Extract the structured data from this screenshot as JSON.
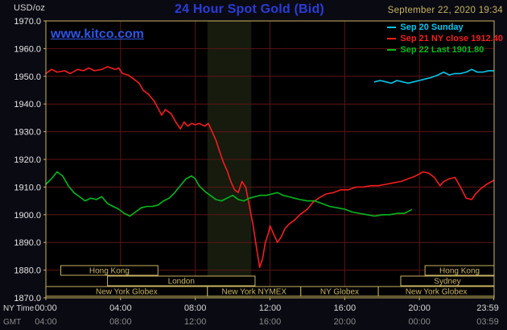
{
  "header": {
    "units_label": "USD/oz",
    "title": "24 Hour Spot Gold (Bid)",
    "datetime": "September 22, 2020 19:34"
  },
  "watermark_text": "www.kitco.com",
  "colors": {
    "page_bg": "#0a0a13",
    "plot_bg": "#000000",
    "frame": "#c9b462",
    "grid": "#5f1515",
    "band": "#161b0e",
    "title": "#2b3cd9",
    "watermark": "#2c55e8",
    "datetime": "#c8b55e",
    "units": "#d6d6d6",
    "y_tick_text": "#e6e6e6",
    "ny_time_text": "#d9d9d9",
    "gmt_text": "#8a8a8a"
  },
  "chart_data": {
    "type": "line",
    "title": "24 Hour Spot Gold (Bid)",
    "xlabel": "NY Time",
    "ylabel": "USD/oz",
    "xlim": [
      0,
      24
    ],
    "ylim": [
      1870,
      1970
    ],
    "grid": true,
    "legend_position": "top-right",
    "y_ticks": [
      1970,
      1960,
      1950,
      1940,
      1930,
      1920,
      1910,
      1900,
      1890,
      1880,
      1870
    ],
    "tick_hours": [
      0,
      4,
      8,
      12,
      16,
      20,
      23.983
    ],
    "ny_ticks": [
      "00:00",
      "04:00",
      "08:00",
      "12:00",
      "16:00",
      "20:00",
      "23:59"
    ],
    "gmt_ticks": [
      "04:00",
      "08:00",
      "12:00",
      "16:00",
      "20:00",
      "00:00",
      "03:59"
    ],
    "ny_axis_label": "NY Time",
    "gmt_axis_label": "GMT",
    "shaded_band_hours": [
      8.65,
      11.0
    ],
    "sessions": [
      {
        "row": 0,
        "label": "Hong Kong",
        "start": 0.8,
        "end": 6.0
      },
      {
        "row": 0,
        "label": "Hong Kong",
        "start": 20.3,
        "end": 24
      },
      {
        "row": 1,
        "label": "London",
        "start": 3.3,
        "end": 11.2
      },
      {
        "row": 1,
        "label": "Sydney",
        "start": 19.0,
        "end": 24
      },
      {
        "row": 2,
        "label": "New York Globex",
        "start": 0,
        "end": 8.65
      },
      {
        "row": 2,
        "label": "New York NYMEX",
        "start": 8.65,
        "end": 13.65
      },
      {
        "row": 2,
        "label": "NY Globex",
        "start": 13.65,
        "end": 17.8
      },
      {
        "row": 2,
        "label": "New York Globex",
        "start": 17.8,
        "end": 24
      }
    ],
    "series": [
      {
        "name": "Sep 20 Sunday",
        "color": "#00c8f0",
        "points": [
          [
            17.6,
            1948
          ],
          [
            17.9,
            1948.5
          ],
          [
            18.2,
            1948
          ],
          [
            18.5,
            1947.5
          ],
          [
            18.8,
            1948.5
          ],
          [
            19.1,
            1948
          ],
          [
            19.4,
            1947.5
          ],
          [
            19.7,
            1948
          ],
          [
            20,
            1948.5
          ],
          [
            20.3,
            1949
          ],
          [
            20.6,
            1949.5
          ],
          [
            21,
            1950.5
          ],
          [
            21.3,
            1951.5
          ],
          [
            21.6,
            1950.5
          ],
          [
            21.9,
            1951
          ],
          [
            22.2,
            1951
          ],
          [
            22.5,
            1951.5
          ],
          [
            22.8,
            1952.5
          ],
          [
            23.1,
            1951.5
          ],
          [
            23.4,
            1951.5
          ],
          [
            23.7,
            1952
          ],
          [
            23.98,
            1952
          ]
        ]
      },
      {
        "name": "Sep 21 NY close 1912.40",
        "color": "#f51d1d",
        "points": [
          [
            0,
            1951
          ],
          [
            0.3,
            1952.5
          ],
          [
            0.6,
            1951.5
          ],
          [
            1,
            1952
          ],
          [
            1.3,
            1951
          ],
          [
            1.7,
            1952.5
          ],
          [
            2,
            1952
          ],
          [
            2.3,
            1953
          ],
          [
            2.6,
            1952
          ],
          [
            3,
            1952.5
          ],
          [
            3.3,
            1953.5
          ],
          [
            3.7,
            1952.5
          ],
          [
            3.9,
            1953
          ],
          [
            4.1,
            1951
          ],
          [
            4.4,
            1950.5
          ],
          [
            4.7,
            1949
          ],
          [
            5,
            1947.5
          ],
          [
            5.2,
            1945
          ],
          [
            5.5,
            1943.5
          ],
          [
            5.8,
            1941
          ],
          [
            6,
            1938.5
          ],
          [
            6.2,
            1936
          ],
          [
            6.4,
            1938
          ],
          [
            6.7,
            1936.5
          ],
          [
            7,
            1933
          ],
          [
            7.2,
            1931
          ],
          [
            7.4,
            1933.5
          ],
          [
            7.6,
            1932
          ],
          [
            7.8,
            1933
          ],
          [
            8,
            1932.5
          ],
          [
            8.2,
            1933
          ],
          [
            8.5,
            1932
          ],
          [
            8.7,
            1933
          ],
          [
            8.9,
            1930
          ],
          [
            9.1,
            1927
          ],
          [
            9.3,
            1923
          ],
          [
            9.5,
            1919
          ],
          [
            9.7,
            1916
          ],
          [
            9.9,
            1912
          ],
          [
            10.1,
            1909
          ],
          [
            10.3,
            1908
          ],
          [
            10.5,
            1912
          ],
          [
            10.7,
            1910
          ],
          [
            10.9,
            1903
          ],
          [
            11.1,
            1896
          ],
          [
            11.3,
            1887
          ],
          [
            11.45,
            1881
          ],
          [
            11.6,
            1884
          ],
          [
            11.75,
            1890
          ],
          [
            11.9,
            1893
          ],
          [
            12,
            1896
          ],
          [
            12.2,
            1893
          ],
          [
            12.4,
            1890
          ],
          [
            12.6,
            1892
          ],
          [
            12.8,
            1895
          ],
          [
            13,
            1896.5
          ],
          [
            13.3,
            1898
          ],
          [
            13.6,
            1900
          ],
          [
            14,
            1902
          ],
          [
            14.3,
            1904.5
          ],
          [
            14.6,
            1906
          ],
          [
            15,
            1907.5
          ],
          [
            15.4,
            1908
          ],
          [
            15.8,
            1909
          ],
          [
            16.2,
            1909
          ],
          [
            16.6,
            1910
          ],
          [
            17,
            1910
          ],
          [
            17.4,
            1910.5
          ],
          [
            17.8,
            1910.5
          ],
          [
            18.2,
            1911
          ],
          [
            18.6,
            1911.5
          ],
          [
            19,
            1912
          ],
          [
            19.4,
            1913
          ],
          [
            19.8,
            1914
          ],
          [
            20.2,
            1915.5
          ],
          [
            20.5,
            1915
          ],
          [
            20.8,
            1913.5
          ],
          [
            21.1,
            1910.5
          ],
          [
            21.3,
            1912
          ],
          [
            21.6,
            1913
          ],
          [
            21.9,
            1913.5
          ],
          [
            22.2,
            1910
          ],
          [
            22.5,
            1906
          ],
          [
            22.8,
            1905.5
          ],
          [
            23,
            1907.5
          ],
          [
            23.3,
            1909.5
          ],
          [
            23.6,
            1911
          ],
          [
            23.98,
            1912.4
          ]
        ]
      },
      {
        "name": "Sep 22 Last 1901.80",
        "color": "#00bb1c",
        "points": [
          [
            0,
            1911
          ],
          [
            0.3,
            1913
          ],
          [
            0.6,
            1915.5
          ],
          [
            0.9,
            1914
          ],
          [
            1.2,
            1910.5
          ],
          [
            1.5,
            1908
          ],
          [
            1.8,
            1906.5
          ],
          [
            2.1,
            1905
          ],
          [
            2.4,
            1906
          ],
          [
            2.7,
            1905.5
          ],
          [
            3,
            1906.5
          ],
          [
            3.3,
            1904
          ],
          [
            3.6,
            1903
          ],
          [
            3.9,
            1902
          ],
          [
            4.2,
            1900.5
          ],
          [
            4.5,
            1899.5
          ],
          [
            4.8,
            1901
          ],
          [
            5.1,
            1902.5
          ],
          [
            5.4,
            1903
          ],
          [
            5.7,
            1903
          ],
          [
            6,
            1903.5
          ],
          [
            6.3,
            1905
          ],
          [
            6.6,
            1906
          ],
          [
            6.9,
            1908
          ],
          [
            7.2,
            1910.5
          ],
          [
            7.5,
            1913
          ],
          [
            7.8,
            1914
          ],
          [
            8,
            1913
          ],
          [
            8.2,
            1910.5
          ],
          [
            8.5,
            1908.5
          ],
          [
            8.8,
            1907
          ],
          [
            9.1,
            1905.5
          ],
          [
            9.4,
            1905
          ],
          [
            9.7,
            1906
          ],
          [
            10,
            1907
          ],
          [
            10.3,
            1905.5
          ],
          [
            10.6,
            1905
          ],
          [
            10.9,
            1906
          ],
          [
            11.2,
            1906.5
          ],
          [
            11.5,
            1907
          ],
          [
            11.8,
            1907
          ],
          [
            12.1,
            1907.5
          ],
          [
            12.4,
            1908
          ],
          [
            12.7,
            1907
          ],
          [
            13,
            1906.5
          ],
          [
            13.3,
            1906
          ],
          [
            13.6,
            1905.5
          ],
          [
            14,
            1905
          ],
          [
            14.4,
            1905
          ],
          [
            14.8,
            1904
          ],
          [
            15.2,
            1903
          ],
          [
            15.6,
            1902.5
          ],
          [
            16,
            1902
          ],
          [
            16.4,
            1901
          ],
          [
            16.8,
            1900.5
          ],
          [
            17.2,
            1900
          ],
          [
            17.6,
            1899.5
          ],
          [
            18,
            1900
          ],
          [
            18.4,
            1900
          ],
          [
            18.8,
            1900.5
          ],
          [
            19.2,
            1900.5
          ],
          [
            19.57,
            1901.8
          ]
        ]
      }
    ]
  }
}
